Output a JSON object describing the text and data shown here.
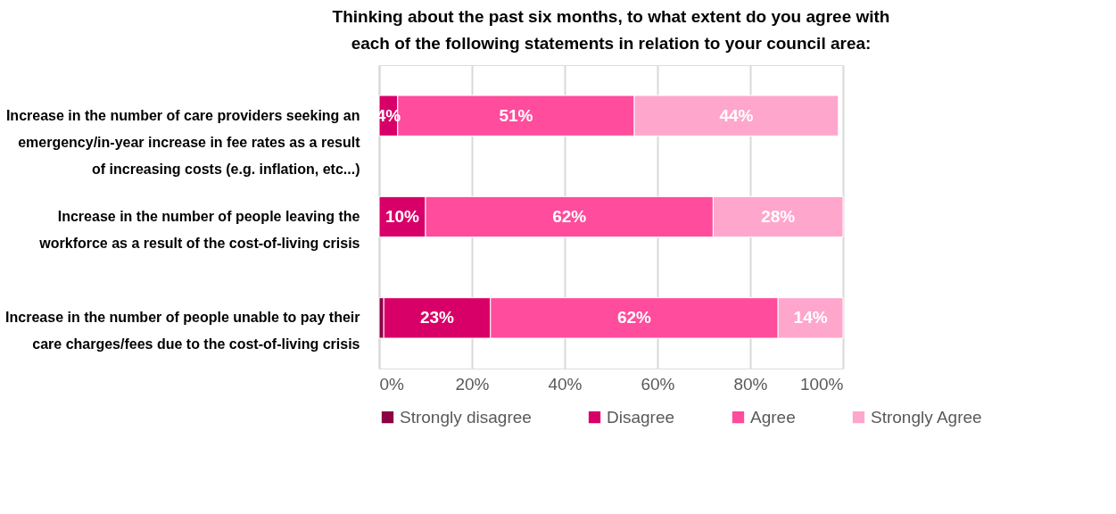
{
  "chart_data": {
    "type": "bar",
    "orientation": "horizontal",
    "stacked": true,
    "title": "Thinking about the past six months, to what extent do you agree with each of the following statements in relation to your council area:",
    "categories": [
      "Increase in the number of care providers seeking an emergency/in-year increase in fee rates as a result of increasing costs (e.g. inflation, etc...)",
      "Increase in the number of people leaving the workforce as a result of the cost-of-living crisis",
      "Increase in the number of people unable to pay their care charges/fees due to the cost-of-living crisis"
    ],
    "series": [
      {
        "name": "Strongly disagree",
        "color": "#8c0044",
        "values": [
          0,
          0,
          1
        ],
        "value_labels": [
          null,
          null,
          null
        ]
      },
      {
        "name": "Disagree",
        "color": "#d80068",
        "values": [
          4,
          10,
          23
        ],
        "value_labels": [
          "4%",
          "10%",
          "23%"
        ]
      },
      {
        "name": "Agree",
        "color": "#ff4c9c",
        "values": [
          51,
          62,
          62
        ],
        "value_labels": [
          "51%",
          "62%",
          "62%"
        ]
      },
      {
        "name": "Strongly Agree",
        "color": "#ffa6cd",
        "values": [
          44,
          28,
          14
        ],
        "value_labels": [
          "44%",
          "28%",
          "14%"
        ]
      }
    ],
    "xlim": [
      0,
      100
    ],
    "xticks": [
      {
        "value": 0,
        "label": "0%"
      },
      {
        "value": 20,
        "label": "20%"
      },
      {
        "value": 40,
        "label": "40%"
      },
      {
        "value": 60,
        "label": "60%"
      },
      {
        "value": 80,
        "label": "80%"
      },
      {
        "value": 100,
        "label": "100%"
      }
    ],
    "grid": "x",
    "legend": "bottom"
  }
}
